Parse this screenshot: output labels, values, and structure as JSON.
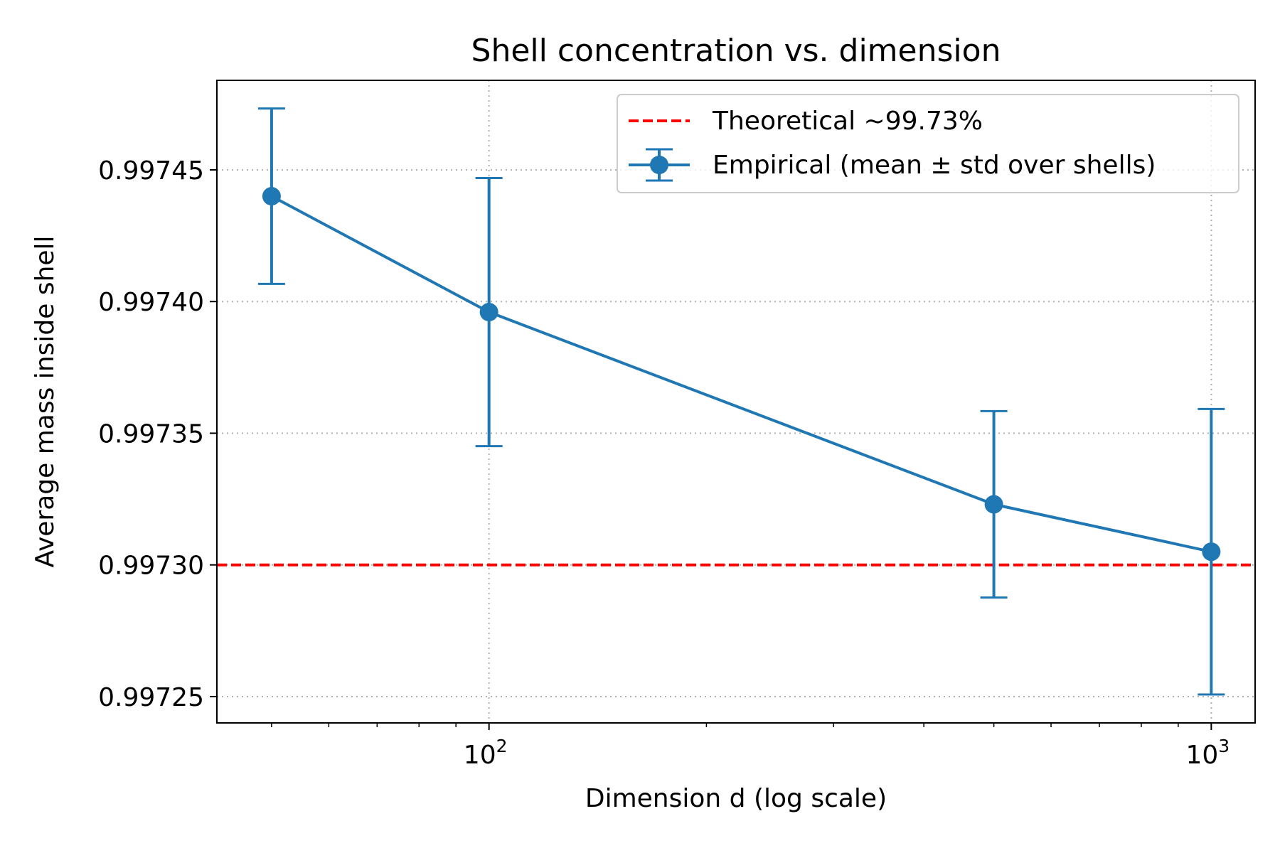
{
  "chart_data": {
    "type": "line",
    "title": "Shell concentration vs. dimension",
    "xlabel": "Dimension d (log scale)",
    "ylabel": "Average mass inside shell",
    "xscale": "log",
    "xlim": [
      42,
      1150
    ],
    "ylim": [
      0.99724,
      0.997484
    ],
    "x_ticks": [
      {
        "value": 100,
        "base": "10",
        "exp": "2"
      },
      {
        "value": 1000,
        "base": "10",
        "exp": "3"
      }
    ],
    "x_minor_ticks": [
      50,
      60,
      70,
      80,
      90,
      200,
      300,
      400,
      500,
      600,
      700,
      800,
      900
    ],
    "y_ticks": [
      {
        "value": 0.99725,
        "label": "0.99725"
      },
      {
        "value": 0.9973,
        "label": "0.99730"
      },
      {
        "value": 0.99735,
        "label": "0.99735"
      },
      {
        "value": 0.9974,
        "label": "0.99740"
      },
      {
        "value": 0.99745,
        "label": "0.99745"
      }
    ],
    "grid": true,
    "legend_position": "top-right",
    "series": [
      {
        "name": "Empirical (mean ± std over shells)",
        "kind": "errorbar",
        "color": "#1f77b4",
        "x": [
          50,
          100,
          500,
          1000
        ],
        "y": [
          0.99744,
          0.997396,
          0.997323,
          0.997305
        ],
        "yerr": [
          3.33e-05,
          5.09e-05,
          3.54e-05,
          5.42e-05
        ]
      },
      {
        "name": "Theoretical ~99.73%",
        "kind": "hline",
        "color": "#ff0000",
        "y": 0.9973
      }
    ]
  }
}
